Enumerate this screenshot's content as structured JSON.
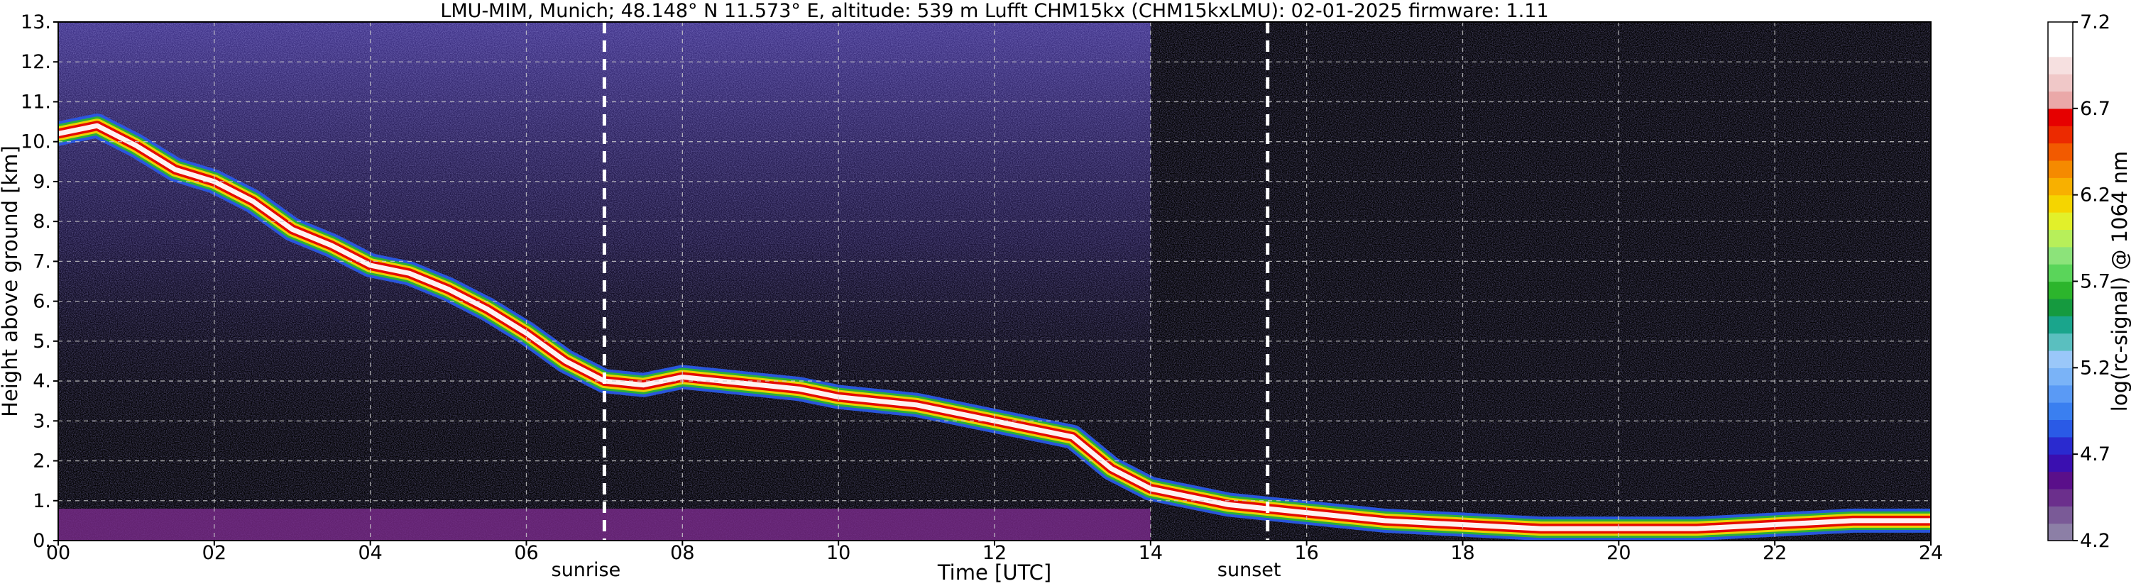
{
  "chart_data": {
    "type": "heatmap",
    "title": "LMU-MIM, Munich; 48.148° N 11.573° E, altitude: 539 m    Lufft CHM15kx (CHM15kxLMU): 02-01-2025    firmware: 1.11",
    "xlabel": "Time [UTC]",
    "ylabel": "Height above ground [km]",
    "xlim": [
      0,
      24
    ],
    "ylim": [
      0,
      13
    ],
    "x_ticks": [
      "00",
      "02",
      "04",
      "06",
      "08",
      "10",
      "12",
      "14",
      "16",
      "18",
      "20",
      "22",
      "24"
    ],
    "y_ticks": [
      "0.",
      "1.",
      "2.",
      "3.",
      "4.",
      "5.",
      "6.",
      "7.",
      "8.",
      "9.",
      "10.",
      "11.",
      "12.",
      "13."
    ],
    "grid": true,
    "markers": [
      {
        "x": 7.0,
        "label": "sunrise"
      },
      {
        "x": 15.5,
        "label": "sunset"
      }
    ],
    "colorbar": {
      "label": "log(rc-signal) @ 1064 nm",
      "range": [
        4.2,
        7.2
      ],
      "ticks": [
        "4.2",
        "4.7",
        "5.2",
        "5.7",
        "6.2",
        "6.7",
        "7.2"
      ],
      "colors": [
        "#8c7fa6",
        "#7a5a97",
        "#6b2f8c",
        "#5a0f8a",
        "#3a0fb0",
        "#2a2acf",
        "#2a5ae6",
        "#3a7ff0",
        "#5a9af5",
        "#7ab3f7",
        "#9ac7f9",
        "#5abfbf",
        "#1aa58c",
        "#159a3f",
        "#2cb52c",
        "#5ad55a",
        "#8ce37a",
        "#b7ef5a",
        "#e2f02a",
        "#f5d500",
        "#f8b000",
        "#f58a00",
        "#f25a00",
        "#ec2a00",
        "#e60000",
        "#eaa8a8",
        "#f0c8c8",
        "#f6e0e0",
        "#ffffff",
        "#ffffff"
      ]
    },
    "cloud_layer": [
      {
        "t": 0.0,
        "h": 10.2
      },
      {
        "t": 0.5,
        "h": 10.4
      },
      {
        "t": 1.0,
        "h": 9.9
      },
      {
        "t": 1.5,
        "h": 9.3
      },
      {
        "t": 2.0,
        "h": 9.0
      },
      {
        "t": 2.5,
        "h": 8.5
      },
      {
        "t": 3.0,
        "h": 7.8
      },
      {
        "t": 3.5,
        "h": 7.4
      },
      {
        "t": 4.0,
        "h": 6.9
      },
      {
        "t": 4.5,
        "h": 6.7
      },
      {
        "t": 5.0,
        "h": 6.3
      },
      {
        "t": 5.5,
        "h": 5.8
      },
      {
        "t": 6.0,
        "h": 5.2
      },
      {
        "t": 6.5,
        "h": 4.5
      },
      {
        "t": 7.0,
        "h": 4.0
      },
      {
        "t": 7.5,
        "h": 3.9
      },
      {
        "t": 8.0,
        "h": 4.1
      },
      {
        "t": 8.5,
        "h": 4.0
      },
      {
        "t": 9.0,
        "h": 3.9
      },
      {
        "t": 9.5,
        "h": 3.8
      },
      {
        "t": 10.0,
        "h": 3.6
      },
      {
        "t": 10.5,
        "h": 3.5
      },
      {
        "t": 11.0,
        "h": 3.4
      },
      {
        "t": 11.5,
        "h": 3.2
      },
      {
        "t": 12.0,
        "h": 3.0
      },
      {
        "t": 12.5,
        "h": 2.8
      },
      {
        "t": 13.0,
        "h": 2.6
      },
      {
        "t": 13.5,
        "h": 1.8
      },
      {
        "t": 14.0,
        "h": 1.3
      },
      {
        "t": 14.5,
        "h": 1.1
      },
      {
        "t": 15.0,
        "h": 0.9
      },
      {
        "t": 15.5,
        "h": 0.8
      },
      {
        "t": 16.0,
        "h": 0.7
      },
      {
        "t": 16.5,
        "h": 0.6
      },
      {
        "t": 17.0,
        "h": 0.5
      },
      {
        "t": 18.0,
        "h": 0.4
      },
      {
        "t": 19.0,
        "h": 0.3
      },
      {
        "t": 20.0,
        "h": 0.3
      },
      {
        "t": 21.0,
        "h": 0.3
      },
      {
        "t": 22.0,
        "h": 0.4
      },
      {
        "t": 23.0,
        "h": 0.5
      },
      {
        "t": 24.0,
        "h": 0.5
      }
    ]
  }
}
